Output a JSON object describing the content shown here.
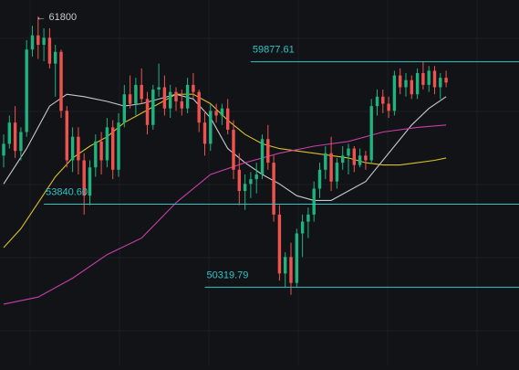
{
  "colors": {
    "background": "#121317",
    "grid": "#1c1e23",
    "up": "#1fb37f",
    "down": "#ef5350",
    "level": "#2ec4c4",
    "ma_fast": "#c8c8d0",
    "ma_mid": "#d8c02a",
    "ma_slow": "#c63fa6",
    "high_label": "#c8c8d0"
  },
  "chart_data": {
    "type": "candlestick",
    "ylim": [
      47000,
      62500
    ],
    "grid": true,
    "high_marker": {
      "label": "← 61800",
      "index": 5,
      "value": 61800
    },
    "levels": [
      {
        "label": "59877.61",
        "value": 59877.61,
        "x_start_index": 43
      },
      {
        "label": "53840.60",
        "value": 53840.6,
        "x_start_index": 7
      },
      {
        "label": "50319.79",
        "value": 50319.79,
        "x_start_index": 35
      }
    ],
    "candles": [
      [
        55900,
        56800,
        55400,
        56400
      ],
      [
        56400,
        57600,
        56200,
        57300
      ],
      [
        57300,
        58000,
        55800,
        56100
      ],
      [
        56100,
        57100,
        55700,
        56900
      ],
      [
        56900,
        60800,
        56700,
        60400
      ],
      [
        60400,
        61400,
        60100,
        61000
      ],
      [
        61000,
        61800,
        60000,
        60600
      ],
      [
        60600,
        61300,
        59900,
        60900
      ],
      [
        60900,
        61300,
        59600,
        59800
      ],
      [
        59800,
        60600,
        58400,
        60300
      ],
      [
        60300,
        60400,
        57500,
        57800
      ],
      [
        57800,
        58000,
        55400,
        55700
      ],
      [
        55700,
        57100,
        55200,
        56700
      ],
      [
        56700,
        57100,
        55100,
        55700
      ],
      [
        55700,
        56000,
        53400,
        54200
      ],
      [
        54200,
        55700,
        53800,
        55400
      ],
      [
        55400,
        56800,
        55000,
        56500
      ],
      [
        56500,
        56900,
        55100,
        55700
      ],
      [
        55700,
        57500,
        55400,
        57100
      ],
      [
        57100,
        57400,
        54900,
        55300
      ],
      [
        55300,
        57700,
        55000,
        57300
      ],
      [
        57300,
        58900,
        57100,
        58500
      ],
      [
        58500,
        59300,
        57900,
        58100
      ],
      [
        58100,
        59200,
        57600,
        58900
      ],
      [
        58900,
        59600,
        58100,
        58300
      ],
      [
        58300,
        58600,
        56800,
        57200
      ],
      [
        57200,
        58900,
        57000,
        58700
      ],
      [
        58700,
        59800,
        58400,
        58800
      ],
      [
        58800,
        59300,
        57600,
        57900
      ],
      [
        57900,
        58900,
        57500,
        58600
      ],
      [
        58600,
        58800,
        57800,
        58200
      ],
      [
        58200,
        58700,
        57600,
        57900
      ],
      [
        57900,
        59200,
        57700,
        58900
      ],
      [
        58900,
        59400,
        58300,
        58600
      ],
      [
        58600,
        58700,
        56900,
        57300
      ],
      [
        57300,
        57800,
        55900,
        56400
      ],
      [
        56400,
        58100,
        56100,
        57800
      ],
      [
        57800,
        58100,
        57300,
        57600
      ],
      [
        57600,
        58100,
        57200,
        57900
      ],
      [
        57900,
        58300,
        56800,
        57000
      ],
      [
        57000,
        57400,
        54900,
        55300
      ],
      [
        55300,
        56000,
        53800,
        54400
      ],
      [
        54400,
        55100,
        53600,
        54700
      ],
      [
        54700,
        55200,
        54100,
        54900
      ],
      [
        54900,
        55600,
        54300,
        55100
      ],
      [
        55100,
        56800,
        54900,
        56600
      ],
      [
        56600,
        57200,
        55300,
        55600
      ],
      [
        55600,
        55900,
        53100,
        53400
      ],
      [
        53400,
        53800,
        50600,
        50900
      ],
      [
        50900,
        51800,
        50300,
        51600
      ],
      [
        51600,
        52200,
        50000,
        50500
      ],
      [
        50500,
        52800,
        50300,
        52600
      ],
      [
        52600,
        53400,
        51600,
        53100
      ],
      [
        53100,
        53700,
        52400,
        53400
      ],
      [
        53400,
        54800,
        53100,
        54500
      ],
      [
        54500,
        55600,
        54100,
        55300
      ],
      [
        55300,
        56300,
        54900,
        56000
      ],
      [
        56000,
        56700,
        54400,
        54800
      ],
      [
        54800,
        55800,
        54500,
        55600
      ],
      [
        55600,
        56300,
        55300,
        55900
      ],
      [
        55900,
        56400,
        55100,
        56200
      ],
      [
        56200,
        56300,
        55200,
        55500
      ],
      [
        55500,
        56200,
        55400,
        55900
      ],
      [
        55900,
        56100,
        55300,
        55700
      ],
      [
        55700,
        58300,
        55600,
        58000
      ],
      [
        58000,
        58700,
        57600,
        58400
      ],
      [
        58400,
        58700,
        57700,
        58100
      ],
      [
        58100,
        58400,
        57500,
        57800
      ],
      [
        57800,
        59500,
        57600,
        59300
      ],
      [
        59300,
        59600,
        58500,
        58800
      ],
      [
        58800,
        59400,
        58400,
        59100
      ],
      [
        59100,
        59300,
        58300,
        58500
      ],
      [
        58500,
        59600,
        58300,
        59400
      ],
      [
        59400,
        59900,
        58700,
        58900
      ],
      [
        58900,
        59700,
        58600,
        59500
      ],
      [
        59500,
        59700,
        58500,
        58800
      ],
      [
        58800,
        59400,
        58300,
        59200
      ],
      [
        59200,
        59500,
        58800,
        59000
      ]
    ],
    "ma": [
      {
        "name": "",
        "colorKey": "ma_fast",
        "points": [
          [
            0,
            54700
          ],
          [
            4,
            56200
          ],
          [
            8,
            58000
          ],
          [
            11,
            58500
          ],
          [
            14,
            58400
          ],
          [
            18,
            58200
          ],
          [
            21,
            58000
          ],
          [
            24,
            58100
          ],
          [
            27,
            58300
          ],
          [
            30,
            58500
          ],
          [
            33,
            58300
          ],
          [
            36,
            57500
          ],
          [
            39,
            56200
          ],
          [
            42,
            55600
          ],
          [
            45,
            55100
          ],
          [
            48,
            54700
          ],
          [
            51,
            54200
          ],
          [
            54,
            54000
          ],
          [
            57,
            54000
          ],
          [
            60,
            54400
          ],
          [
            63,
            54800
          ],
          [
            65,
            55400
          ],
          [
            68,
            56300
          ],
          [
            71,
            57200
          ],
          [
            74,
            57900
          ],
          [
            77,
            58400
          ]
        ]
      },
      {
        "name": "",
        "colorKey": "ma_mid",
        "points": [
          [
            0,
            52000
          ],
          [
            3,
            52800
          ],
          [
            6,
            53900
          ],
          [
            9,
            55000
          ],
          [
            12,
            55800
          ],
          [
            15,
            56300
          ],
          [
            18,
            56700
          ],
          [
            21,
            57300
          ],
          [
            24,
            57700
          ],
          [
            27,
            58100
          ],
          [
            30,
            58500
          ],
          [
            33,
            58500
          ],
          [
            36,
            58100
          ],
          [
            39,
            57400
          ],
          [
            42,
            56800
          ],
          [
            45,
            56400
          ],
          [
            48,
            56200
          ],
          [
            51,
            56100
          ],
          [
            54,
            56000
          ],
          [
            57,
            55900
          ],
          [
            60,
            55800
          ],
          [
            63,
            55600
          ],
          [
            66,
            55500
          ],
          [
            69,
            55500
          ],
          [
            72,
            55600
          ],
          [
            75,
            55700
          ],
          [
            77,
            55800
          ]
        ]
      },
      {
        "name": "",
        "colorKey": "ma_slow",
        "points": [
          [
            0,
            49600
          ],
          [
            6,
            49900
          ],
          [
            12,
            50700
          ],
          [
            18,
            51700
          ],
          [
            24,
            52400
          ],
          [
            30,
            53900
          ],
          [
            36,
            55100
          ],
          [
            42,
            55600
          ],
          [
            48,
            56000
          ],
          [
            54,
            56300
          ],
          [
            60,
            56500
          ],
          [
            66,
            56900
          ],
          [
            72,
            57100
          ],
          [
            77,
            57200
          ]
        ]
      }
    ]
  }
}
